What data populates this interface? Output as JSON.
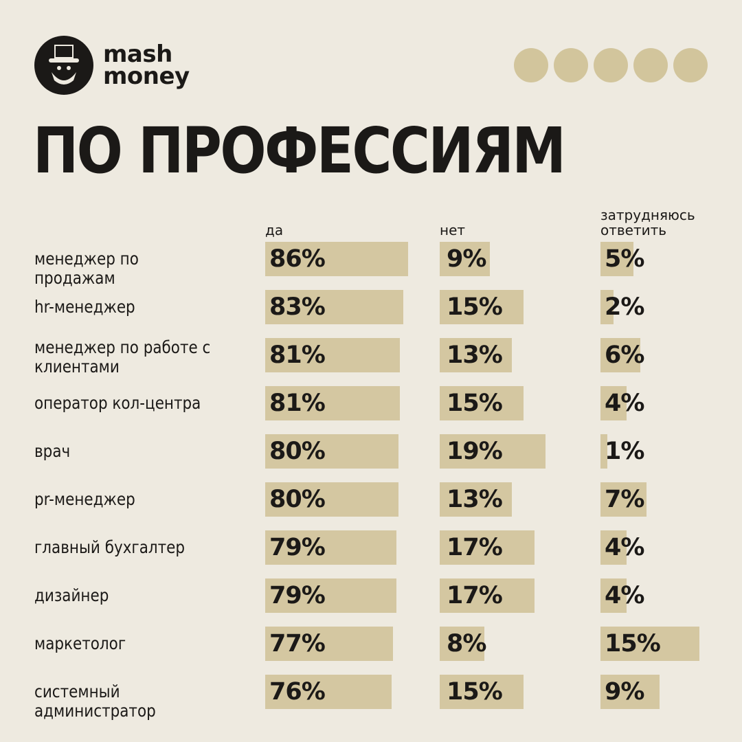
{
  "brand": {
    "line1": "mash",
    "line2": "money"
  },
  "colors": {
    "bar": "#d4c7a1",
    "dots": "#d2c59c",
    "text": "#1b1917",
    "background": "#eeeae0"
  },
  "title": "ПО ПРОФЕССИЯМ",
  "chart_data": {
    "type": "bar",
    "orientation": "horizontal",
    "title": "ПО ПРОФЕССИЯМ",
    "categories": [
      "менеджер по продажам",
      "hr-менеджер",
      "менеджер по работе с клиентами",
      "оператор кол-центра",
      "врач",
      "pr-менеджер",
      "главный бухгалтер",
      "дизайнер",
      "маркетолог",
      "системный администратор"
    ],
    "series": [
      {
        "name": "да",
        "values": [
          86,
          83,
          81,
          81,
          80,
          80,
          79,
          79,
          77,
          76
        ]
      },
      {
        "name": "нет",
        "values": [
          9,
          15,
          13,
          15,
          19,
          13,
          17,
          17,
          8,
          15
        ]
      },
      {
        "name": "затрудняюсь ответить",
        "values": [
          5,
          2,
          6,
          4,
          1,
          7,
          4,
          4,
          15,
          9
        ]
      }
    ],
    "unit": "%"
  }
}
